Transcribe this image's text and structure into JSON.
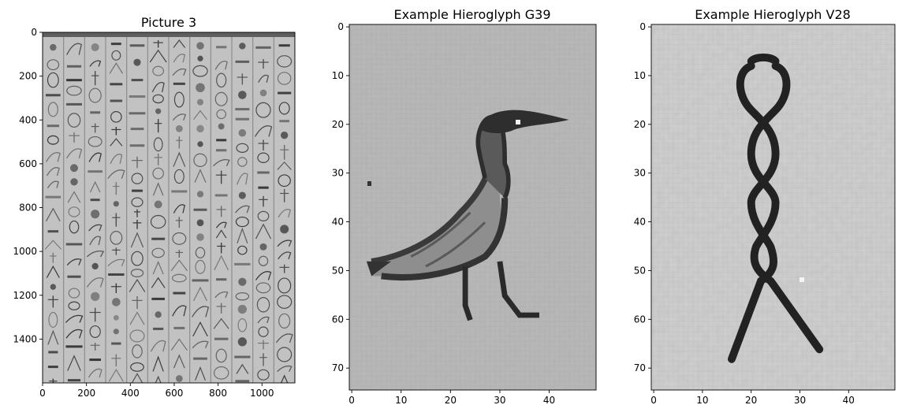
{
  "chart_data": [
    {
      "type": "image",
      "title": "Picture 3",
      "xlim": [
        0,
        1150
      ],
      "ylim": [
        1600,
        0
      ],
      "xticks": [
        0,
        200,
        400,
        600,
        800,
        1000
      ],
      "yticks": [
        0,
        200,
        400,
        600,
        800,
        1000,
        1200,
        1400
      ],
      "colormap": "gray",
      "content": "photo of a stone wall with columns of carved Egyptian hieroglyphs"
    },
    {
      "type": "image",
      "title": "Example Hieroglyph G39",
      "xlim": [
        -0.5,
        49.5
      ],
      "ylim": [
        74.5,
        -0.5
      ],
      "xticks": [
        0,
        10,
        20,
        30,
        40
      ],
      "yticks": [
        0,
        10,
        20,
        30,
        40,
        50,
        60,
        70
      ],
      "colormap": "gray",
      "content": "pintail duck hieroglyph"
    },
    {
      "type": "image",
      "title": "Example Hieroglyph V28",
      "xlim": [
        -0.5,
        49.5
      ],
      "ylim": [
        74.5,
        -0.5
      ],
      "xticks": [
        0,
        10,
        20,
        30,
        40
      ],
      "yticks": [
        0,
        10,
        20,
        30,
        40,
        50,
        60,
        70
      ],
      "colormap": "gray",
      "content": "twisted wick hieroglyph"
    }
  ],
  "colors": {
    "axis": "#000000",
    "background": "#ffffff",
    "stone_light": "#c9c9c9",
    "stone_mid": "#a9a9a9",
    "glyph_dark": "#2a2a2a"
  }
}
